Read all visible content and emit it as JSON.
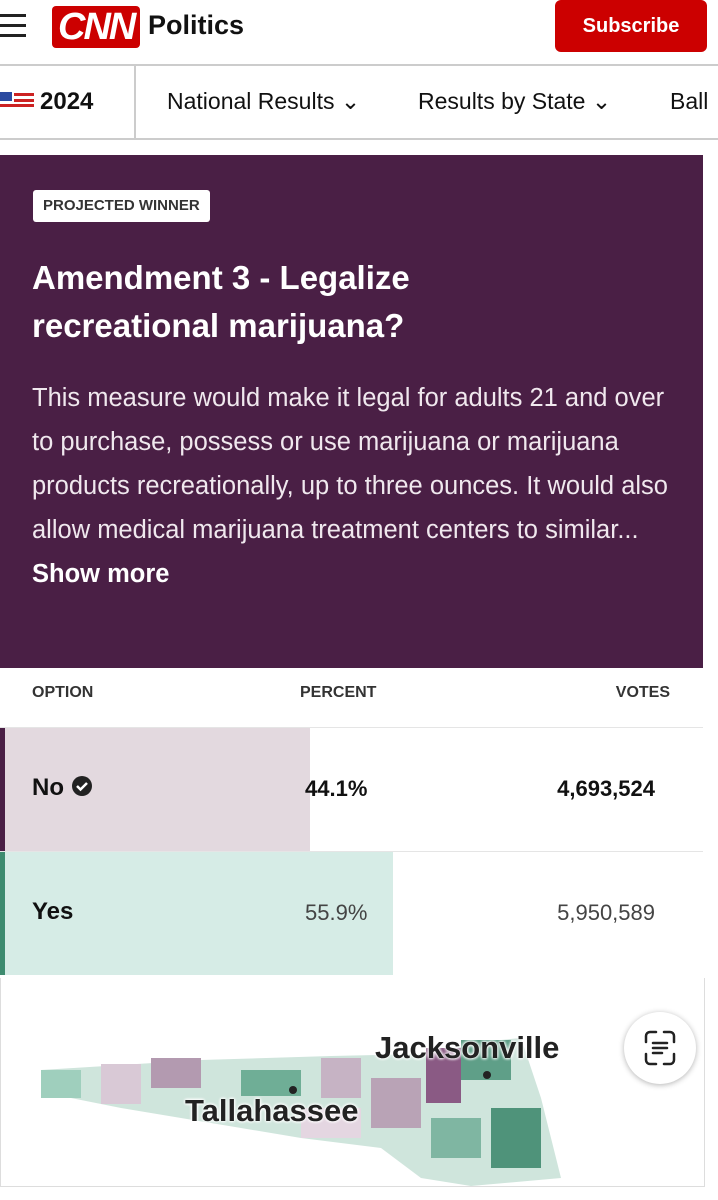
{
  "header": {
    "logo": "CNN",
    "section": "Politics",
    "subscribe": "Subscribe"
  },
  "nav": {
    "year": "2024",
    "links": [
      "National Results",
      "Results by State",
      "Ball"
    ]
  },
  "measure": {
    "badge": "PROJECTED WINNER",
    "title": "Amendment 3 - Legalize recreational marijuana?",
    "description": "This measure would make it legal for adults 21 and over to purchase, possess or use marijuana or marijuana products recreationally, up to three ounces. It would also allow medical marijuana treatment centers to similar...",
    "show_more": "Show more"
  },
  "table": {
    "headers": [
      "OPTION",
      "PERCENT",
      "VOTES"
    ],
    "rows": [
      {
        "option": "No",
        "percent": {
          "value": 44.1,
          "label": "44.1%"
        },
        "votes": "4,693,524"
      },
      {
        "option": "Yes",
        "percent": {
          "value": 55.9,
          "label": "55.9%"
        },
        "votes": "5,950,589"
      }
    ]
  },
  "map": {
    "labels": [
      "Jacksonville",
      "Tallahassee"
    ]
  }
}
